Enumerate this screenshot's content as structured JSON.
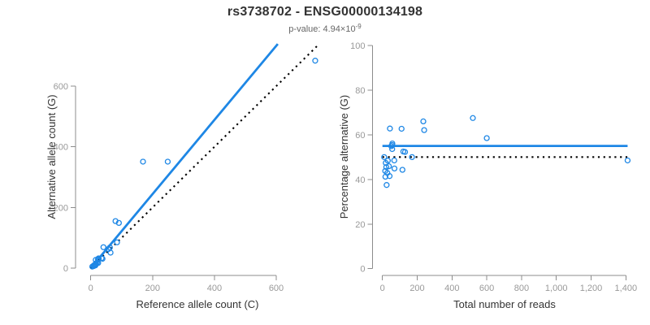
{
  "header": {
    "title": "rs3738702 - ENSG00000134198",
    "subtitle_base": "p-value: 4.94×10",
    "subtitle_exponent": "-9"
  },
  "colors": {
    "accent": "#1e87e5",
    "dotted_line": "#000000",
    "title": "#333333",
    "subtitle": "#666666",
    "axis": "#8c8c8c",
    "tick_label": "#999999",
    "axis_title": "#333333"
  },
  "marker": {
    "shape": "open-circle",
    "radius": 3
  },
  "chart_data": [
    {
      "id": "allele-counts",
      "type": "scatter",
      "xlabel": "Reference allele count (C)",
      "ylabel": "Alternative allele count (G)",
      "xlim": [
        0,
        740
      ],
      "ylim": [
        0,
        745
      ],
      "grid": false,
      "xticks": {
        "values": [
          0,
          200,
          400,
          600
        ],
        "labels": [
          "0",
          "200",
          "400",
          "600"
        ]
      },
      "yticks": {
        "values": [
          0,
          200,
          400,
          600
        ],
        "labels": [
          "0",
          "200",
          "400",
          "600"
        ]
      },
      "points": [
        [
          726,
          684
        ],
        [
          169,
          351
        ],
        [
          249,
          351
        ],
        [
          80,
          155
        ],
        [
          91,
          149
        ],
        [
          41,
          69
        ],
        [
          85,
          85
        ],
        [
          62,
          68
        ],
        [
          57,
          63
        ],
        [
          64,
          51
        ],
        [
          38,
          31
        ],
        [
          25,
          31
        ],
        [
          25,
          32
        ],
        [
          23,
          28
        ],
        [
          26,
          30
        ],
        [
          35,
          33
        ],
        [
          16,
          27
        ],
        [
          5,
          5
        ],
        [
          10,
          9
        ],
        [
          16,
          15
        ],
        [
          20,
          17
        ],
        [
          12,
          10
        ],
        [
          9,
          7
        ],
        [
          16,
          12
        ],
        [
          10,
          7
        ],
        [
          24,
          17
        ],
        [
          15,
          9
        ]
      ],
      "lines": [
        {
          "name": "fitted-ratio-line",
          "style": "solid",
          "x1": 0,
          "y1": 0,
          "x2": 605,
          "y2": 739
        },
        {
          "name": "identity-line",
          "style": "dotted",
          "x1": 0,
          "y1": 0,
          "x2": 736,
          "y2": 736
        }
      ]
    },
    {
      "id": "percentage-alternative",
      "type": "scatter",
      "xlabel": "Total number of reads",
      "ylabel": "Percentage alternative (G)",
      "xlim": [
        0,
        1466
      ],
      "ylim": [
        0,
        100
      ],
      "grid": false,
      "xticks": {
        "values": [
          0,
          200,
          400,
          600,
          800,
          1000,
          1200,
          1400
        ],
        "labels": [
          "0",
          "200",
          "400",
          "600",
          "800",
          "1,000",
          "1,200",
          "1,400"
        ]
      },
      "yticks": {
        "values": [
          0,
          20,
          40,
          60,
          80,
          100
        ],
        "labels": [
          "0",
          "20",
          "40",
          "60",
          "80",
          "100"
        ]
      },
      "points": [
        [
          1410,
          48.5
        ],
        [
          520,
          67.5
        ],
        [
          600,
          58.5
        ],
        [
          235,
          66.0
        ],
        [
          240,
          62.1
        ],
        [
          110,
          62.7
        ],
        [
          170,
          50.0
        ],
        [
          130,
          52.3
        ],
        [
          120,
          52.5
        ],
        [
          115,
          44.3
        ],
        [
          69,
          44.9
        ],
        [
          56,
          55.4
        ],
        [
          57,
          56.1
        ],
        [
          51,
          54.9
        ],
        [
          56,
          53.6
        ],
        [
          68,
          48.5
        ],
        [
          43,
          62.8
        ],
        [
          10,
          50.0
        ],
        [
          19,
          47.4
        ],
        [
          31,
          48.4
        ],
        [
          37,
          45.9
        ],
        [
          22,
          45.5
        ],
        [
          16,
          43.8
        ],
        [
          28,
          42.9
        ],
        [
          17,
          41.2
        ],
        [
          41,
          41.5
        ],
        [
          24,
          37.5
        ]
      ],
      "lines": [
        {
          "name": "fitted-percentage-line",
          "style": "solid",
          "x1": 0,
          "y1": 55,
          "x2": 1410,
          "y2": 55
        },
        {
          "name": "expected-50-percent-line",
          "style": "dotted",
          "x1": 0,
          "y1": 50,
          "x2": 1410,
          "y2": 50
        }
      ]
    }
  ]
}
